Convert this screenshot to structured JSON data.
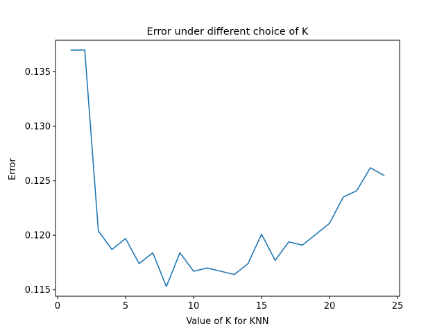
{
  "chart_data": {
    "type": "line",
    "title": "Error under different choice of K",
    "xlabel": "Value of K for KNN",
    "ylabel": "Error",
    "xlim": [
      -0.15,
      25.15
    ],
    "ylim": [
      0.11441,
      0.1379
    ],
    "xticks": [
      0,
      5,
      10,
      15,
      20,
      25
    ],
    "xtick_labels": [
      "0",
      "5",
      "10",
      "15",
      "20",
      "25"
    ],
    "yticks": [
      0.115,
      0.12,
      0.125,
      0.13,
      0.135
    ],
    "ytick_labels": [
      "0.115",
      "0.120",
      "0.125",
      "0.130",
      "0.135"
    ],
    "grid": false,
    "legend": "none",
    "line_color": "#1f77b4",
    "series": [
      {
        "x": [
          1,
          2,
          3,
          4,
          5,
          6,
          7,
          8,
          9,
          10,
          11,
          12,
          13,
          14,
          15,
          16,
          17,
          18,
          19,
          20,
          21,
          22,
          23,
          24
        ],
        "values": [
          0.137,
          0.137,
          0.1204,
          0.1187,
          0.1197,
          0.1174,
          0.1184,
          0.1153,
          0.1184,
          0.1167,
          0.117,
          0.1167,
          0.1164,
          0.1174,
          0.1201,
          0.1177,
          0.1194,
          0.1191,
          0.1201,
          0.1211,
          0.1235,
          0.1241,
          0.1262,
          0.1255
        ]
      }
    ]
  }
}
